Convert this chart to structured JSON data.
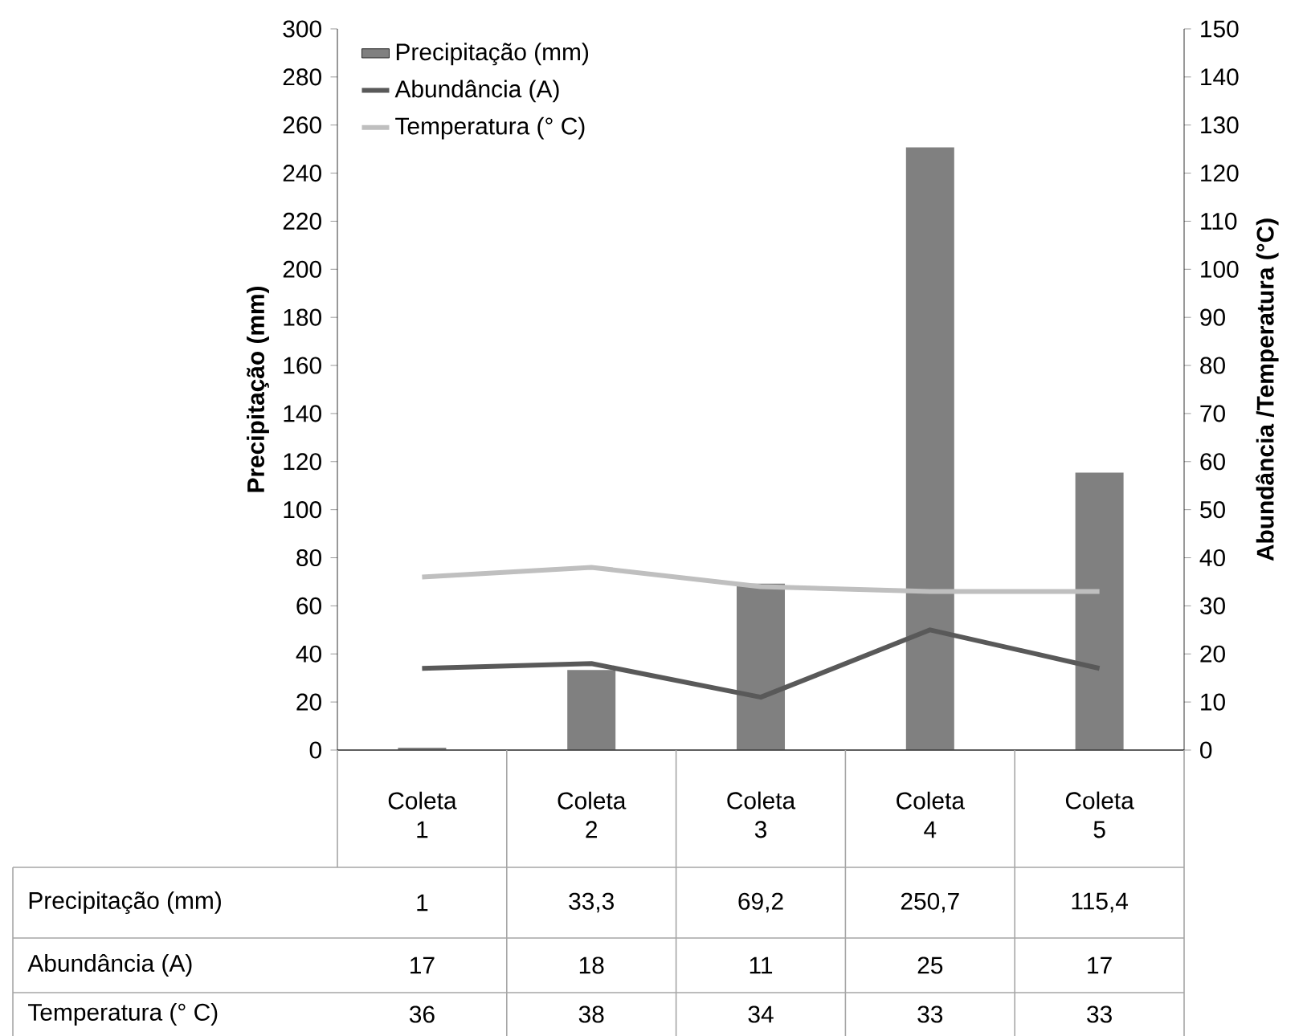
{
  "chart_data": {
    "type": "bar",
    "categories": [
      "Coleta 1",
      "Coleta 2",
      "Coleta 3",
      "Coleta 4",
      "Coleta 5"
    ],
    "ylabel": "Precipitação (mm)",
    "y2label": "Abundância /Temperatura (°C)",
    "ylim": [
      0,
      300
    ],
    "yticks": [
      0,
      20,
      40,
      60,
      80,
      100,
      120,
      140,
      160,
      180,
      200,
      220,
      240,
      260,
      280,
      300
    ],
    "y2lim": [
      0,
      150
    ],
    "y2ticks": [
      0,
      10,
      20,
      30,
      40,
      50,
      60,
      70,
      80,
      90,
      100,
      110,
      120,
      130,
      140,
      150
    ],
    "legend": "top left",
    "marker": "none",
    "line_style": "solid",
    "series": [
      {
        "name": "Precipitação (mm)",
        "color": "#808080",
        "values": [
          1,
          33.3,
          69.2,
          250.7,
          115.4
        ],
        "value_labels": [
          "1",
          "33,3",
          "69,2",
          "250,7",
          "115,4"
        ]
      },
      {
        "name": "Abundância (A)",
        "type": "line",
        "axis": "y2",
        "color": "#595959",
        "values": [
          17,
          18,
          11,
          25,
          17
        ],
        "value_labels": [
          "17",
          "18",
          "11",
          "25",
          "17"
        ]
      },
      {
        "name": "Temperatura (° C)",
        "type": "line",
        "axis": "y2",
        "color": "#bfbfbf",
        "values": [
          36,
          38,
          34,
          33,
          33
        ],
        "value_labels": [
          "36",
          "38",
          "34",
          "33",
          "33"
        ]
      }
    ]
  }
}
